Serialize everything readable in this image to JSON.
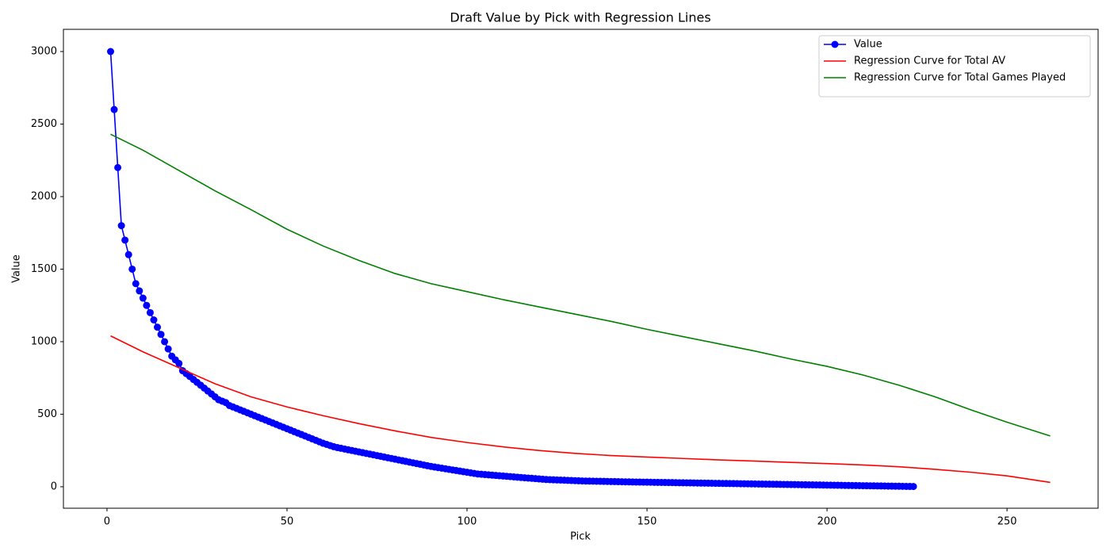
{
  "chart_data": {
    "type": "line",
    "title": "Draft Value by Pick with Regression Lines",
    "xlabel": "Pick",
    "ylabel": "Value",
    "xlim": [
      -12.1,
      275.3
    ],
    "ylim": [
      -148,
      3153
    ],
    "xticks": [
      0,
      50,
      100,
      150,
      200,
      250
    ],
    "yticks": [
      0,
      500,
      1000,
      1500,
      2000,
      2500,
      3000
    ],
    "grid": false,
    "legend": "upper right",
    "series": [
      {
        "name": "Value",
        "color": "#0000ff",
        "marker": true,
        "x": [
          1,
          2,
          3,
          4,
          5,
          6,
          7,
          8,
          9,
          10,
          11,
          12,
          13,
          14,
          15,
          16,
          17,
          18,
          19,
          20,
          21,
          22,
          23,
          24,
          25,
          26,
          27,
          28,
          29,
          30,
          31,
          32,
          33,
          34,
          35,
          36,
          37,
          38,
          39,
          40,
          41,
          42,
          43,
          44,
          45,
          46,
          47,
          48,
          49,
          50,
          51,
          52,
          53,
          54,
          55,
          56,
          57,
          58,
          59,
          60,
          61,
          62,
          63,
          64,
          65,
          66,
          67,
          68,
          69,
          70,
          71,
          72,
          73,
          74,
          75,
          76,
          77,
          78,
          79,
          80,
          81,
          82,
          83,
          84,
          85,
          86,
          87,
          88,
          89,
          90,
          91,
          92,
          93,
          94,
          95,
          96,
          97,
          98,
          99,
          100,
          101,
          102,
          103,
          104,
          105,
          106,
          107,
          108,
          109,
          110,
          111,
          112,
          113,
          114,
          115,
          116,
          117,
          118,
          119,
          120,
          121,
          122,
          123,
          124,
          125,
          126,
          127,
          128,
          129,
          130,
          131,
          132,
          133,
          134,
          135,
          136,
          137,
          138,
          139,
          140,
          141,
          142,
          143,
          144,
          145,
          146,
          147,
          148,
          149,
          150,
          151,
          152,
          153,
          154,
          155,
          156,
          157,
          158,
          159,
          160,
          161,
          162,
          163,
          164,
          165,
          166,
          167,
          168,
          169,
          170,
          171,
          172,
          173,
          174,
          175,
          176,
          177,
          178,
          179,
          180,
          181,
          182,
          183,
          184,
          185,
          186,
          187,
          188,
          189,
          190,
          191,
          192,
          193,
          194,
          195,
          196,
          197,
          198,
          199,
          200,
          201,
          202,
          203,
          204,
          205,
          206,
          207,
          208,
          209,
          210,
          211,
          212,
          213,
          214,
          215,
          216,
          217,
          218,
          219,
          220,
          221,
          222,
          223,
          224
        ],
        "values": [
          3000,
          2600,
          2200,
          1800,
          1700,
          1600,
          1500,
          1400,
          1350,
          1300,
          1250,
          1200,
          1150,
          1100,
          1050,
          1000,
          950,
          900,
          875,
          850,
          800,
          780,
          760,
          740,
          720,
          700,
          680,
          660,
          640,
          620,
          600,
          590,
          580,
          560,
          550,
          540,
          530,
          520,
          510,
          500,
          490,
          480,
          470,
          460,
          450,
          440,
          430,
          420,
          410,
          400,
          390,
          380,
          370,
          360,
          350,
          340,
          330,
          320,
          310,
          300,
          292,
          284,
          276,
          270,
          265,
          260,
          255,
          250,
          245,
          240,
          235,
          230,
          225,
          220,
          215,
          210,
          205,
          200,
          195,
          190,
          185,
          180,
          175,
          170,
          165,
          160,
          155,
          150,
          145,
          140,
          136,
          132,
          128,
          124,
          120,
          116,
          112,
          108,
          104,
          100,
          96,
          92,
          88,
          86,
          84,
          82,
          80,
          78,
          76,
          74,
          72,
          70,
          68,
          66,
          64,
          62,
          60,
          58,
          56,
          54,
          52,
          50,
          49,
          48,
          47,
          46,
          45,
          44,
          43,
          42,
          41,
          40,
          39.5,
          39,
          38.5,
          38,
          37.5,
          37,
          36.5,
          36,
          35.5,
          35,
          34.5,
          34,
          33.5,
          33,
          32.6,
          32.2,
          31.8,
          31.4,
          31,
          30.6,
          30.2,
          29.8,
          29.4,
          29,
          28.6,
          28.2,
          27.8,
          27.4,
          27,
          26.6,
          26.2,
          25.8,
          25.4,
          25,
          24.6,
          24.2,
          23.8,
          23.4,
          23,
          22.6,
          22.2,
          21.8,
          21.4,
          21,
          20.6,
          20.2,
          19.8,
          19.4,
          19,
          18.6,
          18.2,
          17.8,
          17.4,
          17,
          16.6,
          16.2,
          15.8,
          15.4,
          15,
          14.6,
          14.2,
          13.8,
          13.4,
          13,
          12.6,
          12.2,
          11.8,
          11.4,
          11,
          10.6,
          10.2,
          9.8,
          9.4,
          9,
          8.6,
          8.2,
          7.8,
          7.4,
          7,
          6.6,
          6.2,
          5.8,
          5.4,
          5,
          4.6,
          4.2,
          3.8,
          3.4,
          3,
          2.6,
          2.2,
          1.8
        ]
      },
      {
        "name": "Regression Curve for Total AV",
        "color": "#ff0000",
        "marker": false,
        "x": [
          1,
          10,
          20,
          30,
          40,
          50,
          60,
          70,
          80,
          90,
          100,
          110,
          120,
          130,
          140,
          150,
          160,
          170,
          180,
          190,
          200,
          210,
          220,
          230,
          240,
          250,
          262
        ],
        "values": [
          1040,
          930,
          820,
          710,
          620,
          550,
          490,
          435,
          385,
          340,
          305,
          275,
          250,
          230,
          215,
          205,
          195,
          185,
          177,
          168,
          160,
          150,
          138,
          120,
          100,
          75,
          30
        ]
      },
      {
        "name": "Regression Curve for Total Games Played",
        "color": "#008000",
        "marker": false,
        "x": [
          1,
          10,
          20,
          30,
          40,
          50,
          60,
          70,
          80,
          90,
          100,
          110,
          120,
          130,
          140,
          150,
          160,
          170,
          180,
          190,
          200,
          210,
          220,
          230,
          240,
          250,
          262
        ],
        "values": [
          2430,
          2320,
          2180,
          2040,
          1910,
          1775,
          1660,
          1560,
          1470,
          1400,
          1345,
          1290,
          1240,
          1190,
          1140,
          1085,
          1035,
          985,
          935,
          880,
          830,
          770,
          700,
          620,
          530,
          445,
          350
        ]
      }
    ]
  }
}
